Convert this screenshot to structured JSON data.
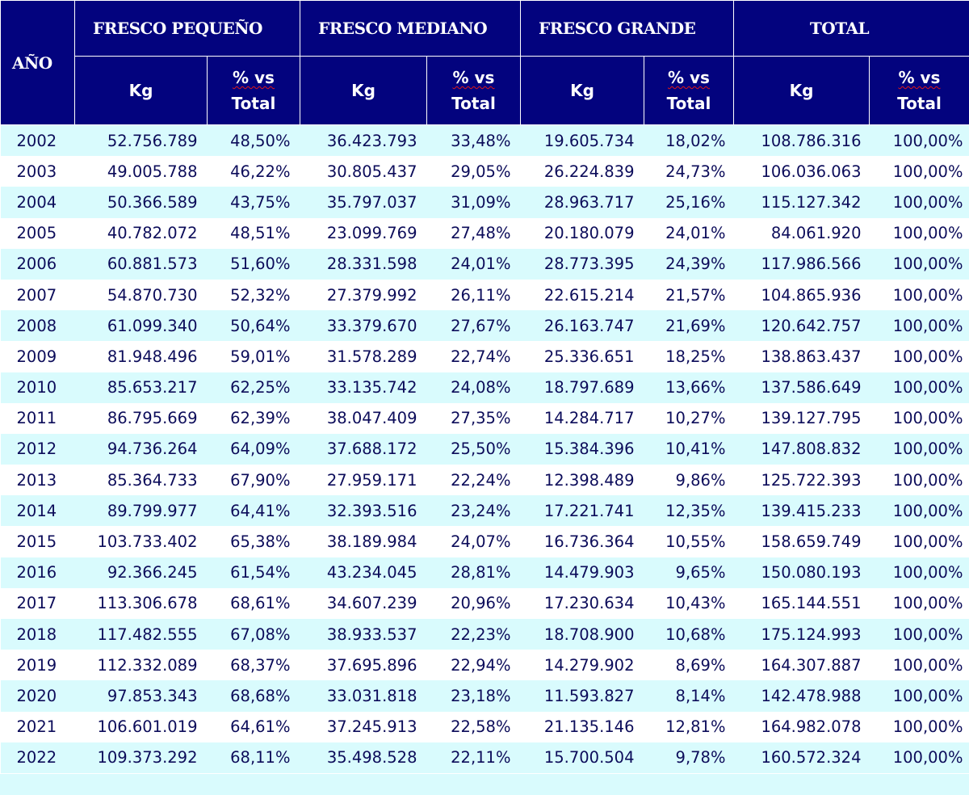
{
  "header": {
    "year_label": "AÑO",
    "groups": [
      "FRESCO PEQUEÑO",
      "FRESCO MEDIANO",
      "FRESCO GRANDE",
      "TOTAL"
    ],
    "kg_label": "Kg",
    "pct_label_top": "% vs",
    "pct_label_bottom": "Total"
  },
  "rows": [
    [
      "2002",
      "52.756.789",
      "48,50%",
      "36.423.793",
      "33,48%",
      "19.605.734",
      "18,02%",
      "108.786.316",
      "100,00%"
    ],
    [
      "2003",
      "49.005.788",
      "46,22%",
      "30.805.437",
      "29,05%",
      "26.224.839",
      "24,73%",
      "106.036.063",
      "100,00%"
    ],
    [
      "2004",
      "50.366.589",
      "43,75%",
      "35.797.037",
      "31,09%",
      "28.963.717",
      "25,16%",
      "115.127.342",
      "100,00%"
    ],
    [
      "2005",
      "40.782.072",
      "48,51%",
      "23.099.769",
      "27,48%",
      "20.180.079",
      "24,01%",
      "84.061.920",
      "100,00%"
    ],
    [
      "2006",
      "60.881.573",
      "51,60%",
      "28.331.598",
      "24,01%",
      "28.773.395",
      "24,39%",
      "117.986.566",
      "100,00%"
    ],
    [
      "2007",
      "54.870.730",
      "52,32%",
      "27.379.992",
      "26,11%",
      "22.615.214",
      "21,57%",
      "104.865.936",
      "100,00%"
    ],
    [
      "2008",
      "61.099.340",
      "50,64%",
      "33.379.670",
      "27,67%",
      "26.163.747",
      "21,69%",
      "120.642.757",
      "100,00%"
    ],
    [
      "2009",
      "81.948.496",
      "59,01%",
      "31.578.289",
      "22,74%",
      "25.336.651",
      "18,25%",
      "138.863.437",
      "100,00%"
    ],
    [
      "2010",
      "85.653.217",
      "62,25%",
      "33.135.742",
      "24,08%",
      "18.797.689",
      "13,66%",
      "137.586.649",
      "100,00%"
    ],
    [
      "2011",
      "86.795.669",
      "62,39%",
      "38.047.409",
      "27,35%",
      "14.284.717",
      "10,27%",
      "139.127.795",
      "100,00%"
    ],
    [
      "2012",
      "94.736.264",
      "64,09%",
      "37.688.172",
      "25,50%",
      "15.384.396",
      "10,41%",
      "147.808.832",
      "100,00%"
    ],
    [
      "2013",
      "85.364.733",
      "67,90%",
      "27.959.171",
      "22,24%",
      "12.398.489",
      "9,86%",
      "125.722.393",
      "100,00%"
    ],
    [
      "2014",
      "89.799.977",
      "64,41%",
      "32.393.516",
      "23,24%",
      "17.221.741",
      "12,35%",
      "139.415.233",
      "100,00%"
    ],
    [
      "2015",
      "103.733.402",
      "65,38%",
      "38.189.984",
      "24,07%",
      "16.736.364",
      "10,55%",
      "158.659.749",
      "100,00%"
    ],
    [
      "2016",
      "92.366.245",
      "61,54%",
      "43.234.045",
      "28,81%",
      "14.479.903",
      "9,65%",
      "150.080.193",
      "100,00%"
    ],
    [
      "2017",
      "113.306.678",
      "68,61%",
      "34.607.239",
      "20,96%",
      "17.230.634",
      "10,43%",
      "165.144.551",
      "100,00%"
    ],
    [
      "2018",
      "117.482.555",
      "67,08%",
      "38.933.537",
      "22,23%",
      "18.708.900",
      "10,68%",
      "175.124.993",
      "100,00%"
    ],
    [
      "2019",
      "112.332.089",
      "68,37%",
      "37.695.896",
      "22,94%",
      "14.279.902",
      "8,69%",
      "164.307.887",
      "100,00%"
    ],
    [
      "2020",
      "97.853.343",
      "68,68%",
      "33.031.818",
      "23,18%",
      "11.593.827",
      "8,14%",
      "142.478.988",
      "100,00%"
    ],
    [
      "2021",
      "106.601.019",
      "64,61%",
      "37.245.913",
      "22,58%",
      "21.135.146",
      "12,81%",
      "164.982.078",
      "100,00%"
    ],
    [
      "2022",
      "109.373.292",
      "68,11%",
      "35.498.528",
      "22,11%",
      "15.700.504",
      "9,78%",
      "160.572.324",
      "100,00%"
    ]
  ],
  "colors": {
    "header_bg": "#03037e",
    "header_text": "#ffffff",
    "band_row": "#d9fbfd",
    "plain_row": "#ffffff",
    "cell_text": "#0c0c5a",
    "spellcheck_underline": "#e01818"
  }
}
